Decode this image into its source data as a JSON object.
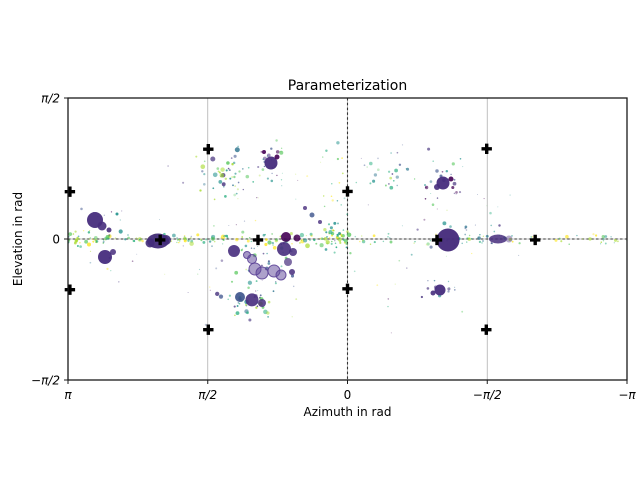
{
  "chart_data": {
    "type": "scatter",
    "title": "Parameterization",
    "xlabel": "Azimuth in rad",
    "ylabel": "Elevation in rad",
    "xlim": [
      3.14159,
      -3.14159
    ],
    "ylim": [
      -1.5708,
      1.5708
    ],
    "x_axis_reversed": true,
    "grid": true,
    "grid_color": "#b0b0b0",
    "zero_lines": {
      "x": 0,
      "y": 0,
      "style": "dashed",
      "color": "#333333"
    },
    "x_ticks": [
      {
        "label": "π",
        "value": 3.14159
      },
      {
        "label": "π/2",
        "value": 1.5708
      },
      {
        "label": "0",
        "value": 0
      },
      {
        "label": "−π/2",
        "value": -1.5708
      },
      {
        "label": "−π",
        "value": -3.14159
      }
    ],
    "y_ticks": [
      {
        "label": "π/2",
        "value": 1.5708
      },
      {
        "label": "0",
        "value": 0
      },
      {
        "label": "−π/2",
        "value": -1.5708
      }
    ],
    "plus_markers": {
      "color": "#000000",
      "size": 10.4,
      "points": [
        [
          3.12,
          0.527
        ],
        [
          1.565,
          1.0
        ],
        [
          2.105,
          -0.01
        ],
        [
          1.006,
          -0.01
        ],
        [
          0.0,
          0.53
        ],
        [
          -1.565,
          1.005
        ],
        [
          -1.006,
          -0.01
        ],
        [
          -2.11,
          -0.01
        ],
        [
          3.12,
          -0.565
        ],
        [
          1.565,
          -1.01
        ],
        [
          0.0,
          -0.555
        ],
        [
          -1.56,
          -1.01
        ]
      ]
    },
    "blobs": [
      {
        "az": 2.838,
        "el": 0.212,
        "r": 8.0,
        "color": "#472d7d",
        "alpha": 0.95
      },
      {
        "az": 2.759,
        "el": 0.145,
        "r": 4.5,
        "color": "#472d7d",
        "alpha": 0.9
      },
      {
        "az": 2.681,
        "el": 0.1,
        "r": 2.5,
        "color": "#472d7d",
        "alpha": 0.9
      },
      {
        "az": 2.591,
        "el": 0.278,
        "r": 1.5,
        "color": "#21918c",
        "alpha": 0.9
      },
      {
        "az": 2.726,
        "el": -0.2,
        "r": 7.0,
        "color": "#472d7d",
        "alpha": 0.95
      },
      {
        "az": 2.636,
        "el": -0.145,
        "r": 3.0,
        "color": "#472d7d",
        "alpha": 0.85
      },
      {
        "az": 2.13,
        "el": -0.022,
        "r": 9.0,
        "rx": 11.0,
        "ry": 7.5,
        "color": "#432c7a",
        "alpha": 0.95
      },
      {
        "az": 2.04,
        "el": -0.011,
        "r": 5.0,
        "color": "#432c7a",
        "alpha": 0.9
      },
      {
        "az": 2.22,
        "el": -0.045,
        "r": 4.5,
        "color": "#432c7a",
        "alpha": 0.9
      },
      {
        "az": 0.86,
        "el": 0.847,
        "r": 6.5,
        "color": "#472d7d",
        "alpha": 0.95
      },
      {
        "az": 0.792,
        "el": 0.913,
        "r": 2.5,
        "color": "#440154",
        "alpha": 0.9
      },
      {
        "az": 0.939,
        "el": 0.969,
        "r": 2.0,
        "color": "#440154",
        "alpha": 0.9
      },
      {
        "az": 1.276,
        "el": -0.134,
        "r": 6.0,
        "color": "#472d7d",
        "alpha": 0.9
      },
      {
        "az": 0.714,
        "el": -0.111,
        "r": 7.0,
        "color": "#472d7d",
        "alpha": 0.9
      },
      {
        "az": 0.613,
        "el": -0.145,
        "r": 4.0,
        "color": "#472d7d",
        "alpha": 0.85
      },
      {
        "az": 0.691,
        "el": 0.022,
        "r": 5.0,
        "color": "#440154",
        "alpha": 0.9
      },
      {
        "az": 0.568,
        "el": 0.011,
        "r": 3.5,
        "color": "#440154",
        "alpha": 0.85
      },
      {
        "az": 1.04,
        "el": -0.334,
        "r": 6.0,
        "color": "#5c4397",
        "alpha": 0.5,
        "ring": true
      },
      {
        "az": 0.961,
        "el": -0.379,
        "r": 6.0,
        "color": "#5c4397",
        "alpha": 0.5,
        "ring": true
      },
      {
        "az": 0.826,
        "el": -0.356,
        "r": 6.0,
        "color": "#5c4397",
        "alpha": 0.5,
        "ring": true
      },
      {
        "az": 0.747,
        "el": -0.401,
        "r": 5.0,
        "color": "#5c4397",
        "alpha": 0.5,
        "ring": true
      },
      {
        "az": 1.073,
        "el": -0.223,
        "r": 4.5,
        "color": "#5c4397",
        "alpha": 0.5,
        "ring": true
      },
      {
        "az": 1.13,
        "el": -0.178,
        "r": 3.5,
        "color": "#5c4397",
        "alpha": 0.55,
        "ring": true
      },
      {
        "az": 0.669,
        "el": -0.256,
        "r": 4.0,
        "color": "#472d7d",
        "alpha": 0.7
      },
      {
        "az": 0.624,
        "el": -0.368,
        "r": 3.0,
        "color": "#472d7d",
        "alpha": 0.85
      },
      {
        "az": 1.073,
        "el": -0.679,
        "r": 6.5,
        "color": "#472d7d",
        "alpha": 0.9
      },
      {
        "az": 1.208,
        "el": -0.646,
        "r": 5.0,
        "color": "#3b528b",
        "alpha": 0.9
      },
      {
        "az": 0.961,
        "el": -0.713,
        "r": 4.0,
        "color": "#472d7d",
        "alpha": 0.85
      },
      {
        "az": -1.13,
        "el": -0.011,
        "r": 11.5,
        "color": "#472d7d",
        "alpha": 0.97
      },
      {
        "az": -1.692,
        "el": 0.0,
        "r": 6.0,
        "rx": 9.0,
        "ry": 4.5,
        "color": "#472d7d",
        "alpha": 0.85
      },
      {
        "az": -1.815,
        "el": 0.0,
        "r": 3.5,
        "color": "#6b5397",
        "alpha": 0.5
      },
      {
        "az": -1.073,
        "el": 0.624,
        "r": 6.5,
        "color": "#472d7d",
        "alpha": 0.95
      },
      {
        "az": -1.006,
        "el": 0.579,
        "r": 3.0,
        "color": "#472d7d",
        "alpha": 0.9
      },
      {
        "az": -1.163,
        "el": 0.668,
        "r": 2.5,
        "color": "#440154",
        "alpha": 0.9
      },
      {
        "az": -1.04,
        "el": -0.568,
        "r": 5.5,
        "color": "#472d7d",
        "alpha": 0.95
      },
      {
        "az": -0.961,
        "el": -0.602,
        "r": 2.5,
        "color": "#472d7d",
        "alpha": 0.9
      },
      {
        "az": 0.478,
        "el": 0.345,
        "r": 2.0,
        "color": "#472d7d",
        "alpha": 0.8
      },
      {
        "az": 0.399,
        "el": 0.267,
        "r": 2.5,
        "color": "#3b528b",
        "alpha": 0.8
      },
      {
        "az": 0.309,
        "el": 0.189,
        "r": 2.0,
        "color": "#472d7d",
        "alpha": 0.8
      }
    ],
    "palettes": {
      "greenYellow": [
        "#5ec962",
        "#aadc32",
        "#fde725",
        "#28ae80",
        "#21918c"
      ],
      "coolMix": [
        "#21918c",
        "#28ae80",
        "#5ec962",
        "#2c728e",
        "#3b528b",
        "#aadc32",
        "#46327e"
      ],
      "purpleMix": [
        "#440154",
        "#46327e",
        "#3b528b",
        "#21918c",
        "#5ec962"
      ],
      "blueMix": [
        "#3b528b",
        "#2c728e",
        "#21918c",
        "#46327e"
      ],
      "allMix": [
        "#440154",
        "#46327e",
        "#3b528b",
        "#2c728e",
        "#21918c",
        "#28ae80",
        "#5ec962",
        "#aadc32",
        "#fde725"
      ]
    },
    "clusters": [
      {
        "name": "band-left",
        "dist": "band",
        "az0": 3.1,
        "az1": 0.06,
        "el": 0.0,
        "sy": 0.033,
        "n": 115,
        "rMin": 0.7,
        "rMax": 2.3,
        "palette": "greenYellow",
        "alpha": 0.85,
        "seed": 11
      },
      {
        "name": "band-right",
        "dist": "band",
        "az0": -0.05,
        "az1": -3.02,
        "el": 0.0,
        "sy": 0.028,
        "n": 60,
        "rMin": 0.6,
        "rMax": 1.8,
        "palette": "greenYellow",
        "alpha": 0.8,
        "seed": 12
      },
      {
        "name": "top-center",
        "dist": "gauss",
        "cx": 1.335,
        "cy": 0.735,
        "sx": 0.155,
        "sy": 0.135,
        "n": 46,
        "rMin": 0.8,
        "rMax": 2.6,
        "palette": "coolMix",
        "alpha": 0.85,
        "seed": 13
      },
      {
        "name": "zero-column",
        "dist": "gauss",
        "cx": 0.145,
        "cy": 0.01,
        "sx": 0.1,
        "sy": 0.075,
        "n": 44,
        "rMin": 0.8,
        "rMax": 2.5,
        "palette": "greenYellow",
        "alpha": 0.9,
        "seed": 14
      },
      {
        "name": "zero-column-upper",
        "dist": "gauss",
        "cx": 0.13,
        "cy": 0.58,
        "sx": 0.09,
        "sy": 0.24,
        "n": 15,
        "rMin": 0.7,
        "rMax": 1.8,
        "palette": "greenYellow",
        "alpha": 0.7,
        "seed": 15
      },
      {
        "name": "bottom-center",
        "dist": "gauss",
        "cx": 1.15,
        "cy": -0.68,
        "sx": 0.145,
        "sy": 0.115,
        "n": 38,
        "rMin": 0.8,
        "rMax": 2.4,
        "palette": "coolMix",
        "alpha": 0.85,
        "seed": 16
      },
      {
        "name": "upper-blob-halo",
        "dist": "gauss",
        "cx": 0.86,
        "cy": 0.85,
        "sx": 0.13,
        "sy": 0.13,
        "n": 22,
        "rMin": 0.7,
        "rMax": 2.0,
        "palette": "purpleMix",
        "alpha": 0.8,
        "seed": 17
      },
      {
        "name": "top-right",
        "dist": "gauss",
        "cx": -0.47,
        "cy": 0.73,
        "sx": 0.19,
        "sy": 0.13,
        "n": 22,
        "rMin": 0.7,
        "rMax": 2.0,
        "palette": "coolMix",
        "alpha": 0.75,
        "seed": 18
      },
      {
        "name": "right-upper-halo",
        "dist": "gauss",
        "cx": -1.07,
        "cy": 0.61,
        "sx": 0.12,
        "sy": 0.105,
        "n": 20,
        "rMin": 0.7,
        "rMax": 1.9,
        "palette": "purpleMix",
        "alpha": 0.8,
        "seed": 19
      },
      {
        "name": "right-lower-halo",
        "dist": "gauss",
        "cx": -1.02,
        "cy": -0.58,
        "sx": 0.11,
        "sy": 0.065,
        "n": 15,
        "rMin": 0.6,
        "rMax": 1.8,
        "palette": "blueMix",
        "alpha": 0.8,
        "seed": 20
      },
      {
        "name": "right-line",
        "dist": "gauss",
        "cx": -1.35,
        "cy": 0.06,
        "sx": 0.22,
        "sy": 0.09,
        "n": 22,
        "rMin": 0.7,
        "rMax": 2.0,
        "palette": "blueMix",
        "alpha": 0.75,
        "seed": 21
      },
      {
        "name": "ring-cluster-mix",
        "dist": "gauss",
        "cx": 0.93,
        "cy": -0.22,
        "sx": 0.17,
        "sy": 0.12,
        "n": 26,
        "rMin": 0.7,
        "rMax": 2.2,
        "palette": "coolMix",
        "alpha": 0.85,
        "seed": 22
      },
      {
        "name": "midfield-left",
        "dist": "gauss",
        "cx": 1.15,
        "cy": 0.42,
        "sx": 0.7,
        "sy": 0.33,
        "n": 40,
        "rMin": 0.5,
        "rMax": 1.4,
        "palette": "allMix",
        "alpha": 0.5,
        "seed": 23
      },
      {
        "name": "midfield-left-low",
        "dist": "gauss",
        "cx": 1.05,
        "cy": -0.45,
        "sx": 0.55,
        "sy": 0.28,
        "n": 24,
        "rMin": 0.5,
        "rMax": 1.3,
        "palette": "allMix",
        "alpha": 0.5,
        "seed": 24
      },
      {
        "name": "right-mid",
        "dist": "gauss",
        "cx": -1.3,
        "cy": 0.35,
        "sx": 0.6,
        "sy": 0.38,
        "n": 26,
        "rMin": 0.5,
        "rMax": 1.4,
        "palette": "allMix",
        "alpha": 0.5,
        "seed": 25
      },
      {
        "name": "right-low",
        "dist": "gauss",
        "cx": -0.7,
        "cy": -0.5,
        "sx": 0.45,
        "sy": 0.28,
        "n": 12,
        "rMin": 0.5,
        "rMax": 1.2,
        "palette": "allMix",
        "alpha": 0.5,
        "seed": 26
      },
      {
        "name": "left-blob-halo",
        "dist": "gauss",
        "cx": 2.79,
        "cy": 0.16,
        "sx": 0.15,
        "sy": 0.13,
        "n": 14,
        "rMin": 0.6,
        "rMax": 1.6,
        "palette": "allMix",
        "alpha": 0.7,
        "seed": 27
      },
      {
        "name": "left-edge",
        "dist": "gauss",
        "cx": 3.04,
        "cy": 0.0,
        "sx": 0.07,
        "sy": 0.05,
        "n": 16,
        "rMin": 0.8,
        "rMax": 2.0,
        "palette": "greenYellow",
        "alpha": 0.85,
        "seed": 28
      },
      {
        "name": "far-right-line",
        "dist": "gauss",
        "cx": -2.85,
        "cy": 0.0,
        "sx": 0.2,
        "sy": 0.035,
        "n": 10,
        "rMin": 0.6,
        "rMax": 1.5,
        "palette": "greenYellow",
        "alpha": 0.6,
        "seed": 29
      },
      {
        "name": "left-low",
        "dist": "gauss",
        "cx": 2.55,
        "cy": -0.28,
        "sx": 0.3,
        "sy": 0.22,
        "n": 10,
        "rMin": 0.5,
        "rMax": 1.2,
        "palette": "allMix",
        "alpha": 0.55,
        "seed": 30
      }
    ]
  }
}
